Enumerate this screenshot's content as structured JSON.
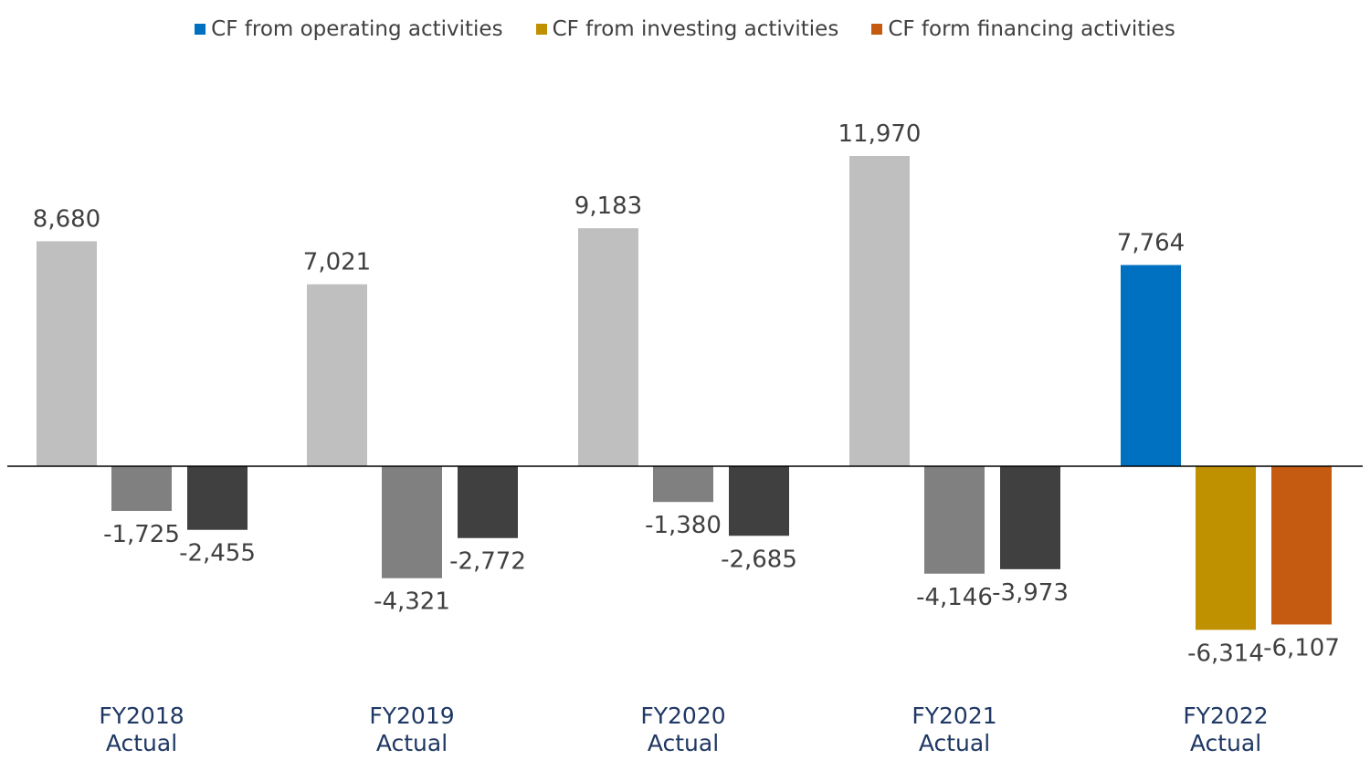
{
  "chart_data": {
    "type": "bar",
    "categories": [
      [
        "FY2018",
        "Actual"
      ],
      [
        "FY2019",
        "Actual"
      ],
      [
        "FY2020",
        "Actual"
      ],
      [
        "FY2021",
        "Actual"
      ],
      [
        "FY2022",
        "Actual"
      ]
    ],
    "series": [
      {
        "name": "CF from operating activities",
        "values": [
          8680,
          7021,
          9183,
          11970,
          7764
        ],
        "labels": [
          "8,680",
          "7,021",
          "9,183",
          "11,970",
          "7,764"
        ]
      },
      {
        "name": "CF from investing activities",
        "values": [
          -1725,
          -4321,
          -1380,
          -4146,
          -6314
        ],
        "labels": [
          "-1,725",
          "-4,321",
          "-1,380",
          "-4,146",
          "-6,314"
        ]
      },
      {
        "name": "CF form financing activities",
        "values": [
          -2455,
          -2772,
          -2685,
          -3973,
          -6107
        ],
        "labels": [
          "-2,455",
          "-2,772",
          "-2,685",
          "-3,973",
          "-6,107"
        ]
      }
    ],
    "legend_colors": [
      "#0070c0",
      "#bf9000",
      "#c55a11"
    ],
    "historic_colors": [
      "#bfbfbf",
      "#808080",
      "#404040"
    ],
    "highlight_category_index": 4,
    "legend_position": "top",
    "grid": false,
    "title": "",
    "xlabel": "",
    "ylabel": ""
  }
}
